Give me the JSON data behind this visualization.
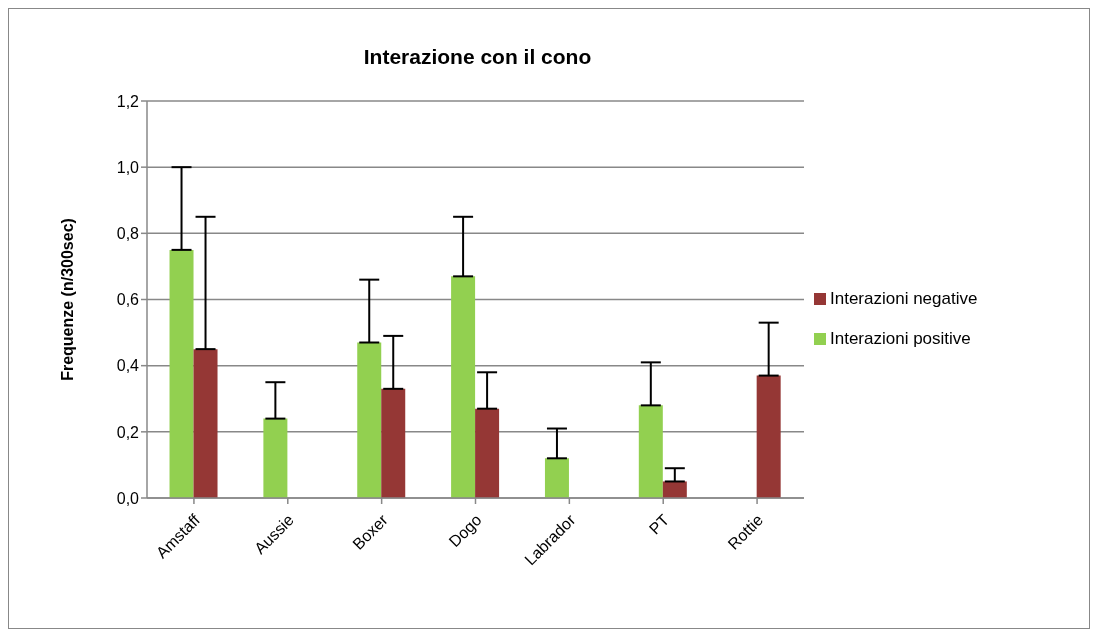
{
  "chart_data": {
    "type": "bar",
    "title": "Interazione con il cono",
    "ylabel": "Frequenze (n/300sec)",
    "categories": [
      "Amstaff",
      "Aussie",
      "Boxer",
      "Dogo",
      "Labrador",
      "PT",
      "Rottie"
    ],
    "series": [
      {
        "name": "Interazioni positive",
        "color": "#92d050",
        "values": [
          0.75,
          0.24,
          0.47,
          0.67,
          0.12,
          0.28,
          0
        ],
        "errors": [
          [
            0.75,
            1.0
          ],
          [
            0.24,
            0.35
          ],
          [
            0.47,
            0.66
          ],
          [
            0.67,
            0.85
          ],
          [
            0.12,
            0.21
          ],
          [
            0.28,
            0.41
          ],
          null
        ]
      },
      {
        "name": "Interazioni negative",
        "color": "#953735",
        "values": [
          0.45,
          0,
          0.33,
          0.27,
          0,
          0.05,
          0.37
        ],
        "errors": [
          [
            0.45,
            0.85
          ],
          null,
          [
            0.33,
            0.49
          ],
          [
            0.27,
            0.38
          ],
          null,
          [
            0.05,
            0.09
          ],
          [
            0.37,
            0.53
          ]
        ]
      }
    ],
    "ylim": [
      0,
      1.2
    ],
    "yticks": [
      {
        "value": 0,
        "label": "0,0"
      },
      {
        "value": 0.2,
        "label": "0,2"
      },
      {
        "value": 0.4,
        "label": "0,4"
      },
      {
        "value": 0.6,
        "label": "0,6"
      },
      {
        "value": 0.8,
        "label": "0,8"
      },
      {
        "value": 1.0,
        "label": "1,0"
      },
      {
        "value": 1.2,
        "label": "1,2"
      }
    ],
    "grid": "y",
    "legend": "right"
  }
}
